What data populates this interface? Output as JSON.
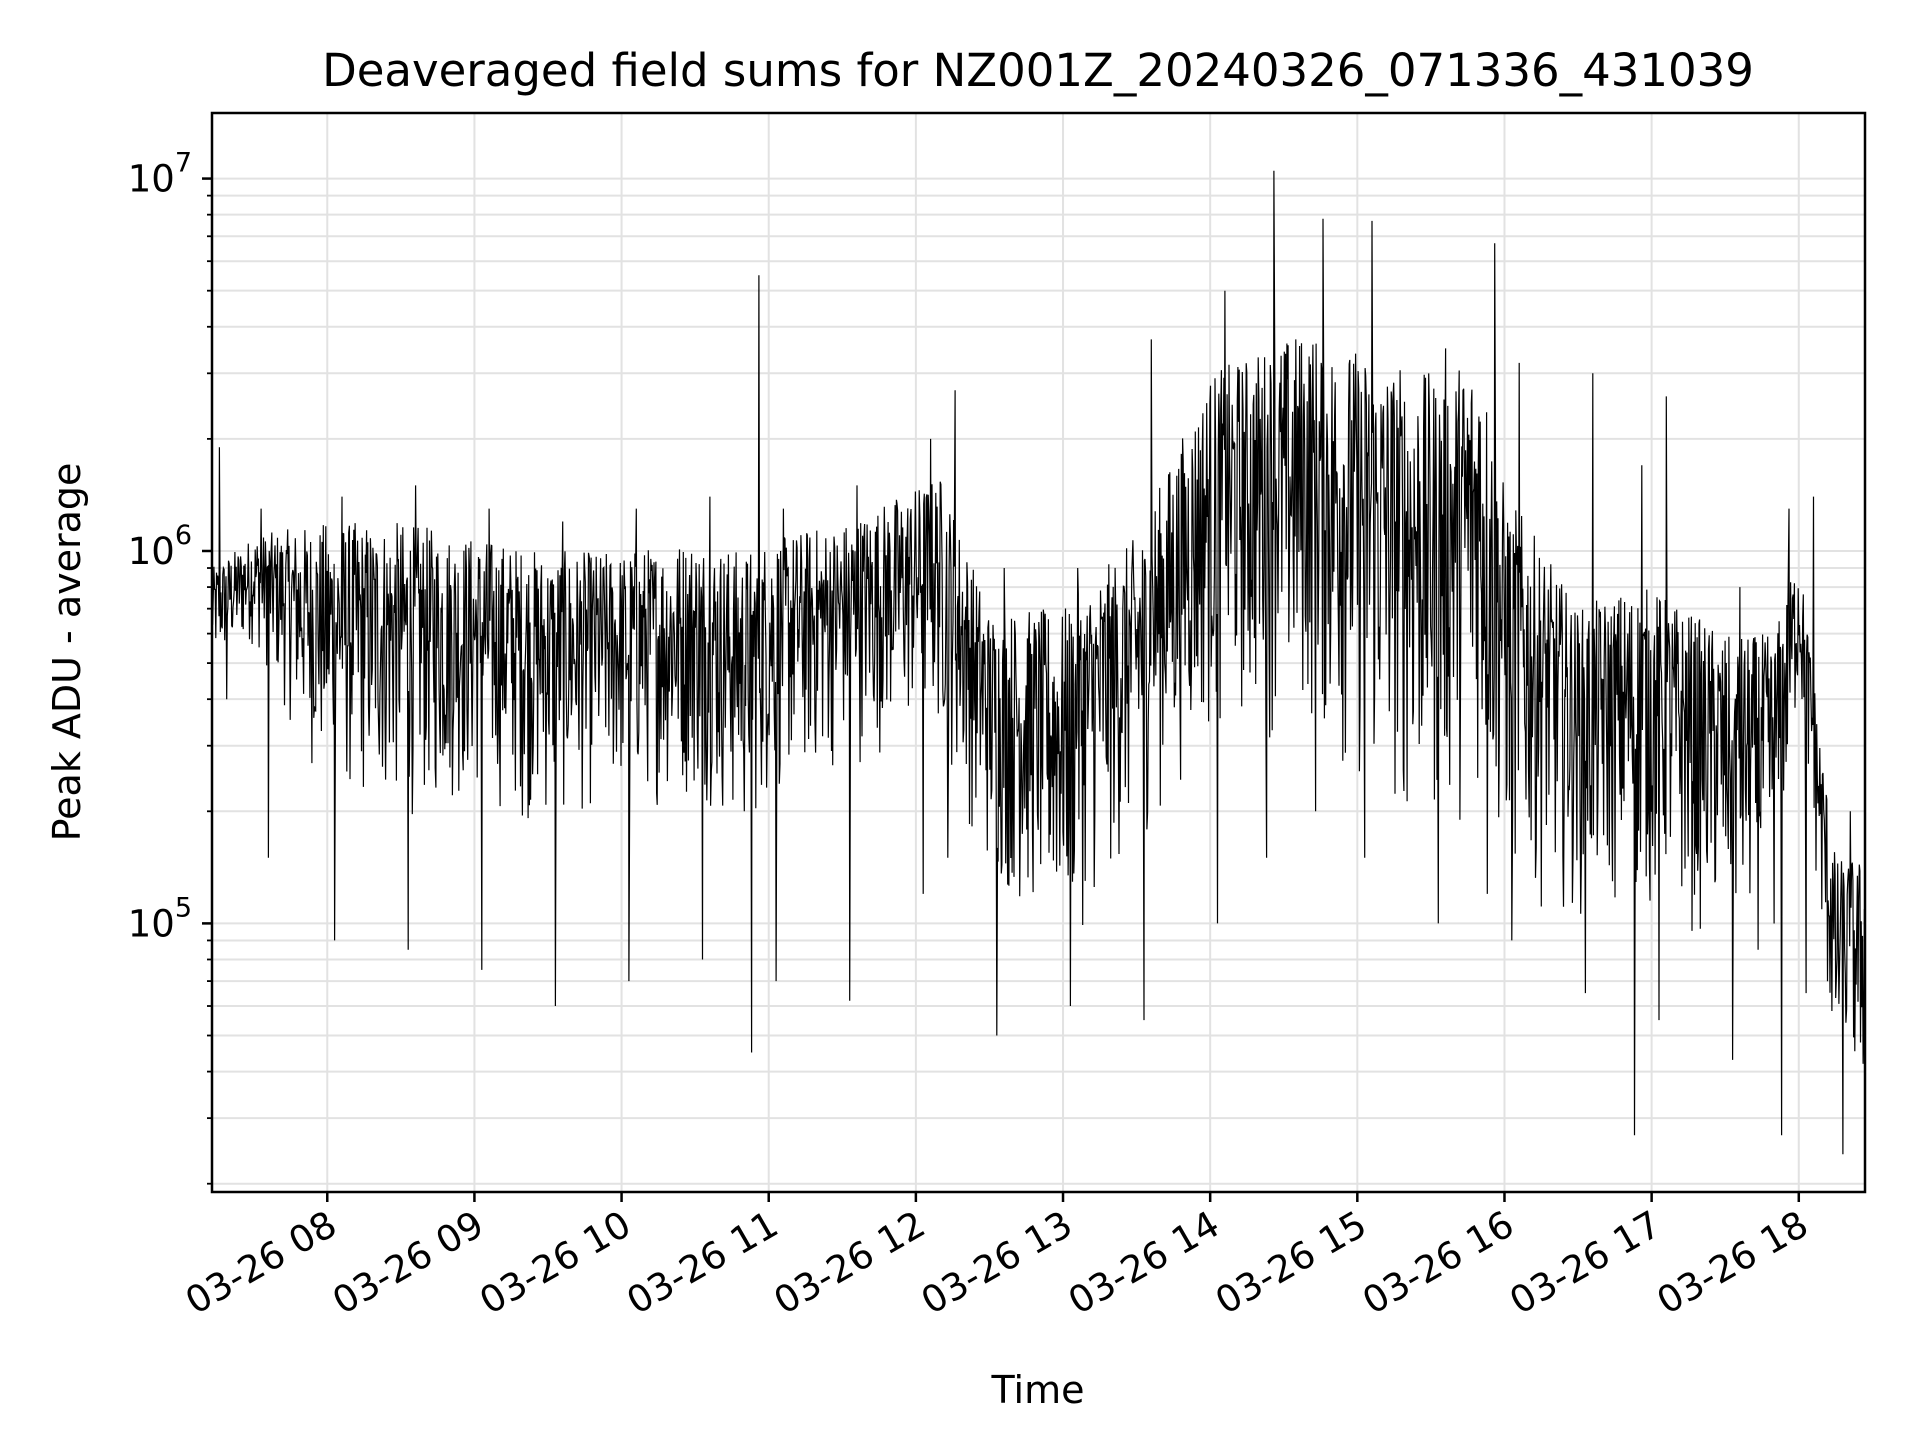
{
  "chart_data": {
    "type": "line",
    "title": "Deaveraged field sums for NZ001Z_20240326_071336_431039",
    "xlabel": "Time",
    "ylabel": "Peak ADU - average",
    "yscale": "log",
    "ylim": [
      19000,
      15000000
    ],
    "xlim": [
      "2024-03-26 07:13",
      "2024-03-26 18:27"
    ],
    "x_ticks": [
      "03-26 08",
      "03-26 09",
      "03-26 10",
      "03-26 11",
      "03-26 12",
      "03-26 13",
      "03-26 14",
      "03-26 15",
      "03-26 16",
      "03-26 17",
      "03-26 18"
    ],
    "y_ticks": [
      {
        "base": "10",
        "exp": "5",
        "value": 100000
      },
      {
        "base": "10",
        "exp": "6",
        "value": 1000000
      },
      {
        "base": "10",
        "exp": "7",
        "value": 10000000
      }
    ],
    "grid": true,
    "line_color": "#000000",
    "series": [
      {
        "values_description_note_excluded": true,
        "envelope": [
          {
            "t": "07:13",
            "low": 450000,
            "high": 900000,
            "spikes": [
              1900000,
              400000
            ]
          },
          {
            "t": "07:30",
            "low": 550000,
            "high": 1100000,
            "spikes": [
              1300000,
              150000
            ]
          },
          {
            "t": "08:00",
            "low": 200000,
            "high": 1200000,
            "spikes": [
              90000,
              1400000
            ]
          },
          {
            "t": "08:30",
            "low": 180000,
            "high": 1200000,
            "spikes": [
              85000,
              1500000
            ]
          },
          {
            "t": "09:00",
            "low": 200000,
            "high": 1100000,
            "spikes": [
              75000,
              1300000
            ]
          },
          {
            "t": "09:30",
            "low": 170000,
            "high": 1000000,
            "spikes": [
              60000,
              1200000
            ]
          },
          {
            "t": "10:00",
            "low": 200000,
            "high": 1000000,
            "spikes": [
              70000,
              1300000
            ]
          },
          {
            "t": "10:30",
            "low": 200000,
            "high": 1100000,
            "spikes": [
              80000,
              1400000
            ]
          },
          {
            "t": "10:50",
            "low": 150000,
            "high": 1000000,
            "spikes": [
              45000,
              5500000
            ]
          },
          {
            "t": "11:00",
            "low": 200000,
            "high": 1100000,
            "spikes": [
              70000,
              1300000
            ]
          },
          {
            "t": "11:30",
            "low": 250000,
            "high": 1200000,
            "spikes": [
              62000,
              1500000
            ]
          },
          {
            "t": "12:00",
            "low": 300000,
            "high": 1500000,
            "spikes": [
              120000,
              2000000
            ]
          },
          {
            "t": "12:10",
            "low": 300000,
            "high": 1600000,
            "spikes": [
              150000,
              2700000
            ]
          },
          {
            "t": "12:30",
            "low": 120000,
            "high": 700000,
            "spikes": [
              50000,
              900000
            ]
          },
          {
            "t": "13:00",
            "low": 80000,
            "high": 700000,
            "spikes": [
              60000,
              900000
            ]
          },
          {
            "t": "13:30",
            "low": 150000,
            "high": 1100000,
            "spikes": [
              55000,
              3700000
            ]
          },
          {
            "t": "14:00",
            "low": 300000,
            "high": 3000000,
            "spikes": [
              100000,
              5000000
            ]
          },
          {
            "t": "14:20",
            "low": 300000,
            "high": 3500000,
            "spikes": [
              150000,
              10500000
            ]
          },
          {
            "t": "14:40",
            "low": 300000,
            "high": 4000000,
            "spikes": [
              200000,
              7800000
            ]
          },
          {
            "t": "15:00",
            "low": 200000,
            "high": 3500000,
            "spikes": [
              150000,
              7700000
            ]
          },
          {
            "t": "15:30",
            "low": 150000,
            "high": 3000000,
            "spikes": [
              100000,
              3500000
            ]
          },
          {
            "t": "15:50",
            "low": 200000,
            "high": 3500000,
            "spikes": [
              120000,
              6700000
            ]
          },
          {
            "t": "16:00",
            "low": 120000,
            "high": 1500000,
            "spikes": [
              90000,
              3200000
            ]
          },
          {
            "t": "16:30",
            "low": 100000,
            "high": 700000,
            "spikes": [
              65000,
              3000000
            ]
          },
          {
            "t": "16:50",
            "low": 100000,
            "high": 800000,
            "spikes": [
              27000,
              1700000
            ]
          },
          {
            "t": "17:00",
            "low": 100000,
            "high": 800000,
            "spikes": [
              55000,
              2600000
            ]
          },
          {
            "t": "17:30",
            "low": 80000,
            "high": 600000,
            "spikes": [
              43000,
              800000
            ]
          },
          {
            "t": "17:50",
            "low": 80000,
            "high": 600000,
            "spikes": [
              27000,
              1300000
            ]
          },
          {
            "t": "18:00",
            "low": 400000,
            "high": 1000000,
            "spikes": [
              65000,
              1400000
            ]
          },
          {
            "t": "18:15",
            "low": 30000,
            "high": 150000,
            "spikes": [
              24000,
              200000
            ]
          }
        ]
      }
    ]
  }
}
